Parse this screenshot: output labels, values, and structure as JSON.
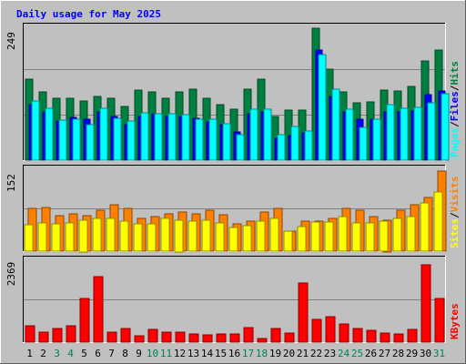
{
  "chart_data": {
    "type": "bar",
    "title": "Daily usage for May 2025",
    "categories": [
      "1",
      "2",
      "3",
      "4",
      "5",
      "6",
      "7",
      "8",
      "9",
      "10",
      "11",
      "12",
      "13",
      "14",
      "15",
      "16",
      "17",
      "18",
      "19",
      "20",
      "21",
      "22",
      "23",
      "24",
      "25",
      "26",
      "27",
      "28",
      "29",
      "30",
      "31"
    ],
    "weekend_days": [
      3,
      4,
      10,
      11,
      17,
      18,
      24,
      25,
      31
    ],
    "panels": [
      {
        "id": "hits",
        "max_label": "249",
        "max": 249,
        "labels": [
          "Pages",
          "Files",
          "Hits"
        ],
        "series": [
          {
            "name": "Hits",
            "color": "#008040",
            "values": [
              150,
              127,
              115,
              115,
              110,
              118,
              115,
              100,
              129,
              127,
              115,
              127,
              131,
              115,
              103,
              94,
              132,
              150,
              81,
              93,
              92,
              244,
              169,
              127,
              106,
              108,
              129,
              128,
              136,
              183,
              203
            ]
          },
          {
            "name": "Files",
            "color": "#0000ff",
            "values": [
              102,
              90,
              72,
              79,
              75,
              90,
              80,
              65,
              80,
              85,
              80,
              80,
              78,
              71,
              65,
              52,
              85,
              90,
              40,
              45,
              51,
              203,
              117,
              90,
              76,
              76,
              90,
              90,
              91,
              121,
              128
            ]
          },
          {
            "name": "Pages",
            "color": "#00ffff",
            "values": [
              110,
              96,
              74,
              75,
              65,
              96,
              78,
              72,
              87,
              86,
              85,
              84,
              76,
              75,
              68,
              47,
              95,
              94,
              47,
              62,
              54,
              196,
              132,
              95,
              61,
              75,
              102,
              96,
              98,
              106,
              123
            ]
          }
        ]
      },
      {
        "id": "visits",
        "max_label": "152",
        "max": 152,
        "labels": [
          "Sites",
          "Visits"
        ],
        "series": [
          {
            "name": "Visits",
            "color": "#ff8000",
            "values": [
              77,
              79,
              65,
              67,
              64,
              74,
              84,
              77,
              60,
              63,
              68,
              71,
              67,
              74,
              66,
              49,
              54,
              71,
              78,
              37,
              54,
              54,
              59,
              77,
              75,
              63,
              57,
              75,
              84,
              97,
              145
            ]
          },
          {
            "name": "Sites",
            "color": "#ffff00",
            "values": [
              48,
              51,
              50,
              52,
              57,
              59,
              59,
              54,
              50,
              49,
              60,
              57,
              54,
              56,
              52,
              43,
              46,
              55,
              59,
              37,
              44,
              53,
              53,
              62,
              52,
              51,
              54,
              60,
              62,
              87,
              107
            ]
          }
        ]
      },
      {
        "id": "kbytes",
        "max_label": "2369",
        "max": 2369,
        "labels": [
          "KBytes"
        ],
        "series": [
          {
            "name": "KBytes",
            "color": "#ff0000",
            "values": [
              470,
              291,
              374,
              456,
              1230,
              1860,
              284,
              376,
              170,
              363,
              280,
              293,
              226,
              210,
              222,
              228,
              400,
              110,
              389,
              268,
              1662,
              643,
              720,
              520,
              390,
              339,
              270,
              223,
              361,
              2200,
              1248
            ]
          }
        ]
      }
    ]
  }
}
